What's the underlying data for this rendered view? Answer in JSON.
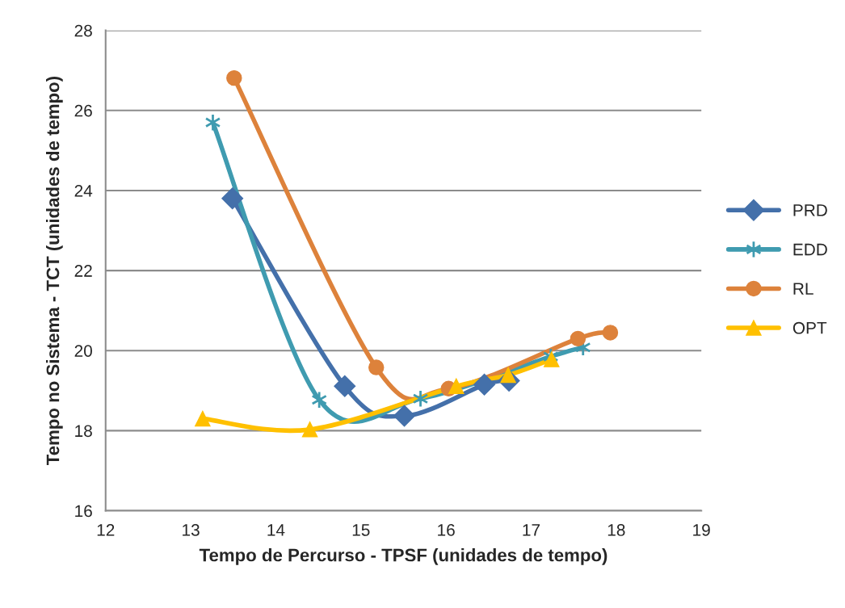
{
  "chart_data": {
    "type": "line",
    "xlabel": "Tempo de Percurso - TPSF (unidades de tempo)",
    "ylabel": "Tempo no Sistema - TCT (unidades de tempo)",
    "xlim": [
      12,
      19
    ],
    "xticks": [
      12,
      13,
      14,
      15,
      16,
      17,
      18,
      19
    ],
    "ylim": [
      16,
      28
    ],
    "yticks": [
      16,
      18,
      20,
      22,
      24,
      26,
      28
    ],
    "grid": "y",
    "legend": "right",
    "line_style": "solid",
    "series": [
      {
        "name": "PRD",
        "color": "#4470aa",
        "marker": "diamond",
        "x": [
          13.49,
          14.81,
          15.51,
          16.45,
          16.74
        ],
        "values": [
          23.8,
          19.11,
          18.37,
          19.15,
          19.25
        ]
      },
      {
        "name": "EDD",
        "color": "#3f9bb0",
        "marker": "cross",
        "x": [
          13.26,
          14.51,
          15.7,
          17.23,
          17.61
        ],
        "values": [
          25.7,
          18.77,
          18.8,
          19.85,
          20.08
        ]
      },
      {
        "name": "RL",
        "color": "#dd823b",
        "marker": "circle",
        "x": [
          13.51,
          15.18,
          16.03,
          17.55,
          17.93
        ],
        "values": [
          26.81,
          19.58,
          19.05,
          20.3,
          20.45
        ]
      },
      {
        "name": "OPT",
        "color": "#ffc000",
        "marker": "triangle",
        "x": [
          13.14,
          14.4,
          16.12,
          16.73,
          17.24
        ],
        "values": [
          18.3,
          18.03,
          19.11,
          19.39,
          19.78
        ]
      }
    ]
  }
}
